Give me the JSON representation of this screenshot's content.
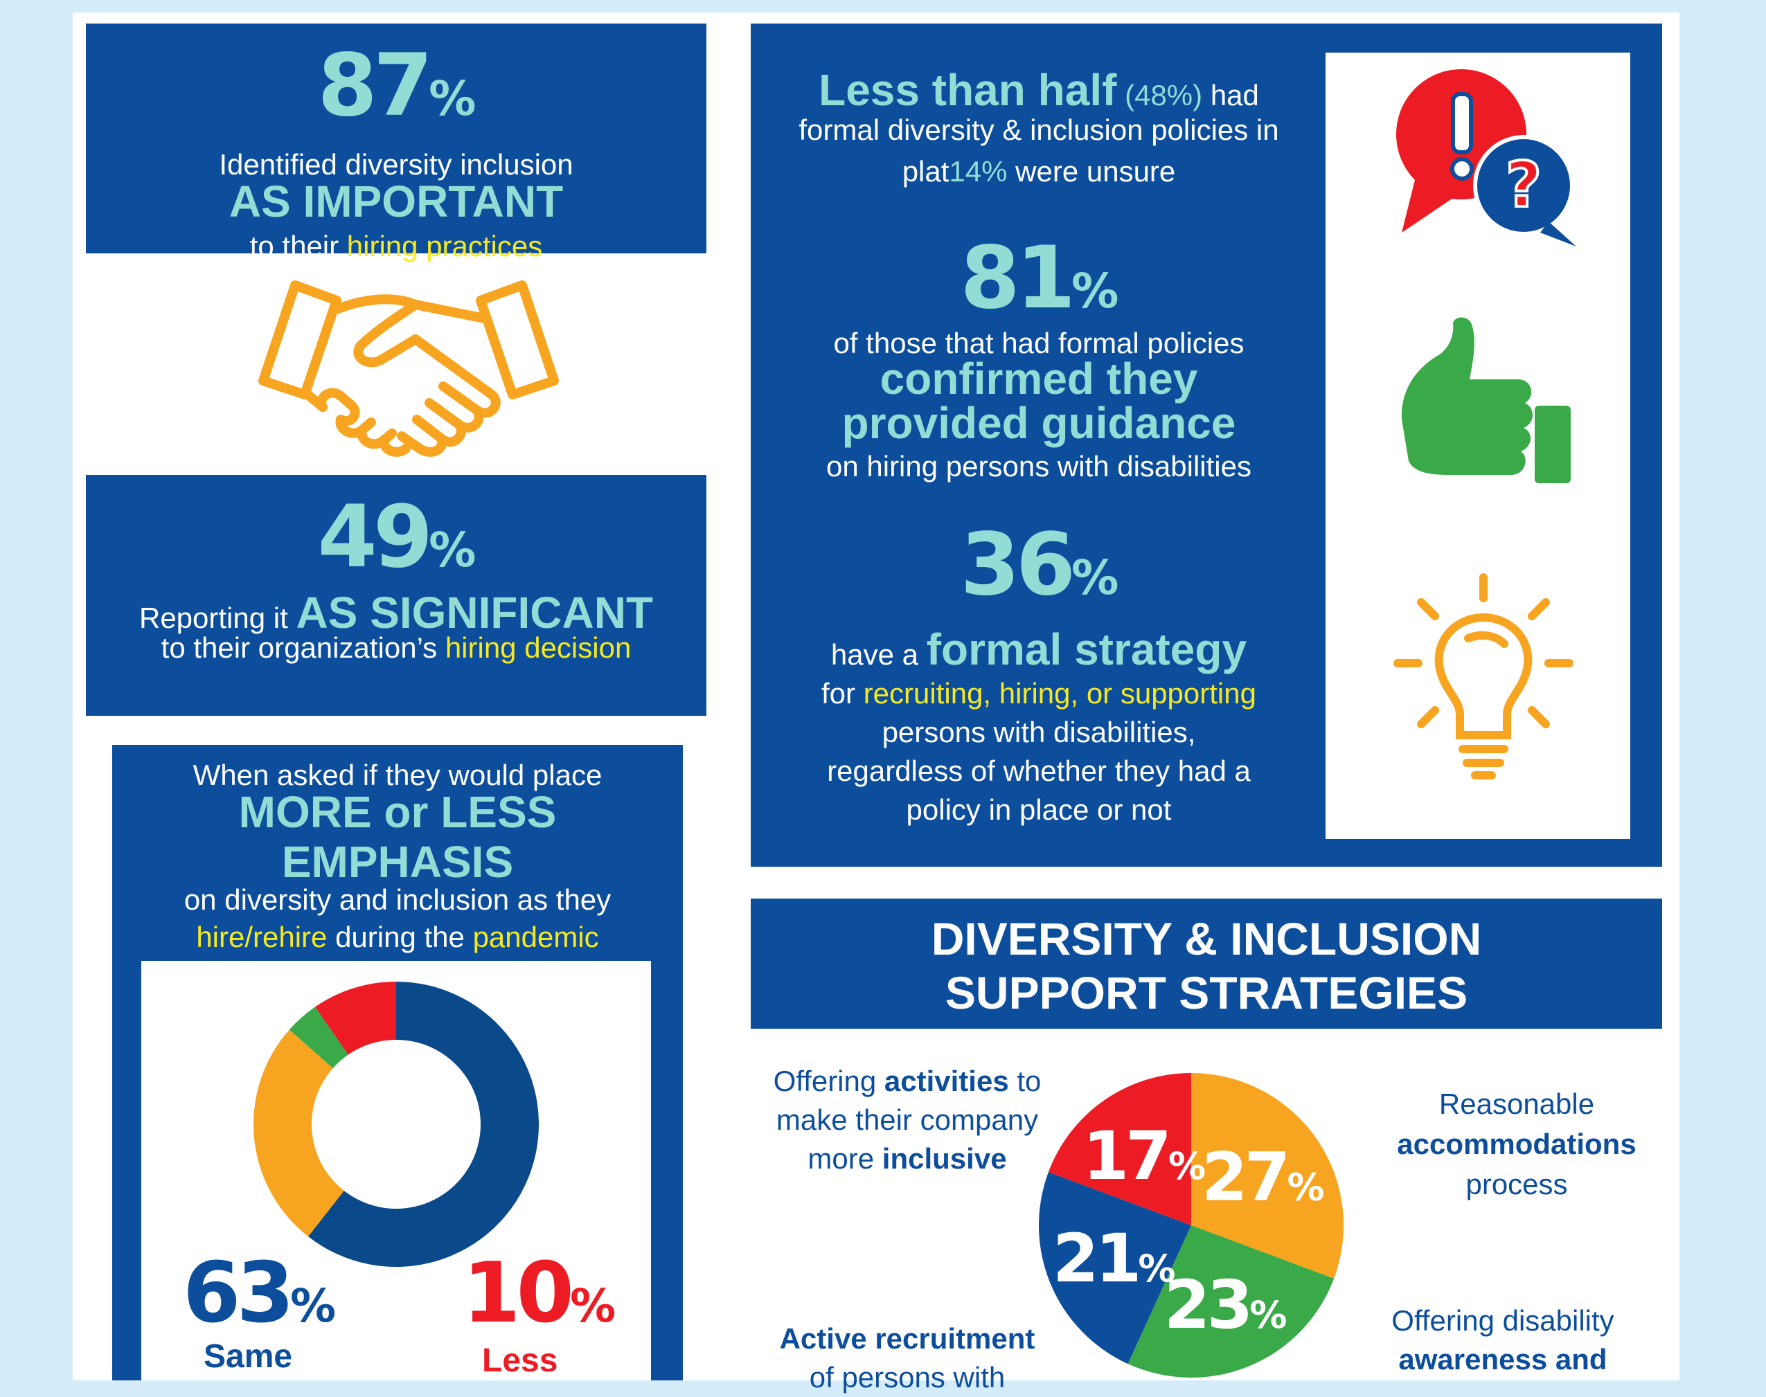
{
  "colors": {
    "navy": "#0d4e9c",
    "teal": "#92dcd6",
    "yellow": "#f6e91f",
    "red": "#ed1c24",
    "orange": "#f7a520",
    "green": "#3aaa49",
    "dark_navy": "#0b4a8a"
  },
  "stat87": {
    "num": "87",
    "pct": "%",
    "line1": "Identified diversity inclusion",
    "emphasis": "AS IMPORTANT",
    "line3_a": "to their",
    "line3_b": "hiring practices"
  },
  "handshake": {
    "icon": "handshake-icon"
  },
  "stat49": {
    "num": "49",
    "pct": "%",
    "line_a": "Reporting it",
    "line_b": "AS SIGNIFICANT",
    "line2_a": "to their organization’s",
    "line2_b": "hiring decision"
  },
  "emphasis": {
    "line1": "When asked if they would place",
    "big1": "MORE or LESS",
    "big2": "EMPHASIS",
    "line3": "on diversity and inclusion as they",
    "line4_a": "hire/rehire",
    "line4_b": "during the",
    "line4_c": "pandemic",
    "same_pct": "63",
    "same_label": "Same",
    "less_pct": "10",
    "less_label": "Less",
    "pct": "%"
  },
  "right_panel": {
    "half_a": "Less than half",
    "half_b": "(48%)",
    "half_c": "had",
    "half_line2": "formal diversity & inclusion policies in",
    "half_line3_a": "plat",
    "half_line3_b": "14%",
    "half_line3_c": "were unsure",
    "stat81": "81",
    "pct": "%",
    "s81_line1": "of those that had formal policies",
    "s81_big1": "confirmed they",
    "s81_big2": "provided guidance",
    "s81_line4": "on hiring persons with disabilities",
    "stat36": "36",
    "s36_a": "have a",
    "s36_b": "formal strategy",
    "s36_line2_a": "for",
    "s36_line2_b": "recruiting, hiring, or supporting",
    "s36_line3": "persons with disabilities,",
    "s36_line4": "regardless of whether they had a",
    "s36_line5": "policy in place or not",
    "icons": [
      "speech-bubbles-icon",
      "thumbs-up-icon",
      "lightbulb-icon"
    ]
  },
  "strategies": {
    "title1": "DIVERSITY & INCLUSION",
    "title2": "SUPPORT STRATEGIES",
    "label_activities_1a": "Offering",
    "label_activities_1b": "activities",
    "label_activities_1c": "to",
    "label_activities_2": "make their company",
    "label_activities_3a": "more",
    "label_activities_3b": "inclusive",
    "label_accom_1": "Reasonable",
    "label_accom_2": "accommodations",
    "label_accom_3": "process",
    "label_recruit_1": "Active recruitment",
    "label_recruit_2": "of persons with",
    "label_aware_1": "Offering disability",
    "label_aware_2": "awareness and"
  },
  "chart_data": [
    {
      "type": "pie",
      "variant": "donut",
      "values": [
        63,
        27,
        4,
        10
      ],
      "colors": [
        "#0b4a8a",
        "#f7a520",
        "#3aaa49",
        "#ed1c24"
      ],
      "labels": [
        "Same",
        "",
        "",
        "Less"
      ]
    },
    {
      "type": "pie",
      "title": "DIVERSITY & INCLUSION SUPPORT STRATEGIES",
      "values": [
        27,
        23,
        21,
        17
      ],
      "display": [
        "27",
        "23",
        "21",
        "17"
      ],
      "colors": [
        "#f7a520",
        "#3aaa49",
        "#0d4e9c",
        "#ed1c24"
      ]
    }
  ]
}
